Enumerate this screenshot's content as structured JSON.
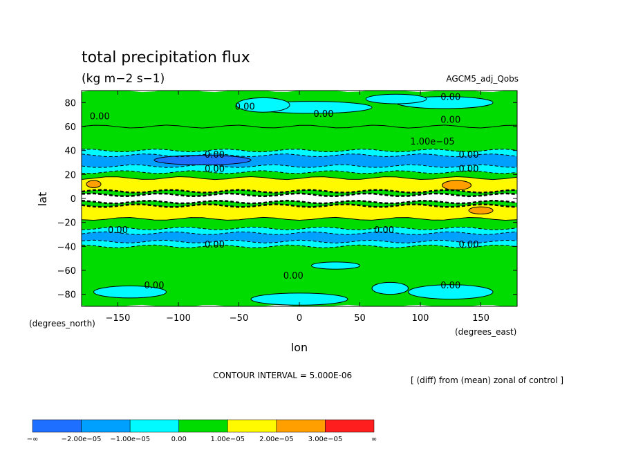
{
  "title": "total precipitation flux",
  "units": "(kg m−2 s−1)",
  "experiment": "AGCM5_adj_Qobs",
  "contour_interval": "CONTOUR INTERVAL = 5.000E-06",
  "description": "[ (diff) from (mean) zonal of control ]",
  "chart_data": {
    "type": "heatmap",
    "title": "total precipitation flux",
    "subtitle": "(kg m−2 s−1)",
    "xlabel": "lon",
    "ylabel": "lat",
    "xunits": "(degrees_east)",
    "yunits": "(degrees_north)",
    "xlim": [
      -180,
      180
    ],
    "ylim": [
      -90,
      90
    ],
    "xticks": [
      "−150",
      "−100",
      "−50",
      "0",
      "50",
      "100",
      "150"
    ],
    "xtick_values": [
      -150,
      -100,
      -50,
      0,
      50,
      100,
      150
    ],
    "yticks": [
      "80",
      "60",
      "40",
      "20",
      "0",
      "−20",
      "−40",
      "−60",
      "−80"
    ],
    "ytick_values": [
      80,
      60,
      40,
      20,
      0,
      -20,
      -40,
      -60,
      -80
    ],
    "contour_interval": 5e-06,
    "colorbar": {
      "labels": [
        "−∞",
        "−2.00e−05",
        "−1.00e−05",
        "0.00",
        "1.00e−05",
        "2.00e−05",
        "3.00e−05",
        "∞"
      ],
      "colors": [
        "#1e6eff",
        "#00a0ff",
        "#00faff",
        "#00dc00",
        "#fffa00",
        "#ffa000",
        "#ff1e1e"
      ]
    },
    "zonal_bands": [
      {
        "lat_min": 60,
        "lat_max": 90,
        "color": "#00dc00"
      },
      {
        "lat_min": 40,
        "lat_max": 60,
        "color": "#00dc00"
      },
      {
        "lat_min": 36,
        "lat_max": 40,
        "color": "#00faff"
      },
      {
        "lat_min": 27,
        "lat_max": 36,
        "color": "#00a0ff"
      },
      {
        "lat_min": 22,
        "lat_max": 27,
        "color": "#00faff"
      },
      {
        "lat_min": 17,
        "lat_max": 22,
        "color": "#00dc00"
      },
      {
        "lat_min": 6,
        "lat_max": 17,
        "color": "#fffa00"
      },
      {
        "lat_min": 3,
        "lat_max": 6,
        "color": "#00dc00"
      },
      {
        "lat_min": -3,
        "lat_max": 3,
        "color": "#ffffff"
      },
      {
        "lat_min": -6,
        "lat_max": -3,
        "color": "#00dc00"
      },
      {
        "lat_min": -17,
        "lat_max": -6,
        "color": "#fffa00"
      },
      {
        "lat_min": -25,
        "lat_max": -17,
        "color": "#00dc00"
      },
      {
        "lat_min": -29,
        "lat_max": -25,
        "color": "#00faff"
      },
      {
        "lat_min": -36,
        "lat_max": -29,
        "color": "#00a0ff"
      },
      {
        "lat_min": -40,
        "lat_max": -36,
        "color": "#00faff"
      },
      {
        "lat_min": -90,
        "lat_max": -40,
        "color": "#00dc00"
      }
    ],
    "patches": [
      {
        "lon": 10,
        "lat": 76,
        "rx": 50,
        "ry": 5,
        "color": "#00faff"
      },
      {
        "lon": -30,
        "lat": 78,
        "rx": 22,
        "ry": 6,
        "color": "#00faff"
      },
      {
        "lon": 120,
        "lat": 80,
        "rx": 40,
        "ry": 5,
        "color": "#00faff"
      },
      {
        "lon": 80,
        "lat": 83,
        "rx": 25,
        "ry": 4,
        "color": "#00faff"
      },
      {
        "lon": 0,
        "lat": -84,
        "rx": 40,
        "ry": 5,
        "color": "#00faff"
      },
      {
        "lon": 75,
        "lat": -75,
        "rx": 15,
        "ry": 5,
        "color": "#00faff"
      },
      {
        "lon": 125,
        "lat": -78,
        "rx": 35,
        "ry": 6,
        "color": "#00faff"
      },
      {
        "lon": -140,
        "lat": -78,
        "rx": 30,
        "ry": 5,
        "color": "#00faff"
      },
      {
        "lon": 30,
        "lat": -56,
        "rx": 20,
        "ry": 3,
        "color": "#00faff"
      },
      {
        "lon": -80,
        "lat": 32,
        "rx": 40,
        "ry": 4,
        "color": "#1e6eff"
      },
      {
        "lon": 130,
        "lat": 11,
        "rx": 12,
        "ry": 4,
        "color": "#ffa000"
      },
      {
        "lon": -170,
        "lat": 12,
        "rx": 6,
        "ry": 3,
        "color": "#ffa000"
      },
      {
        "lon": 150,
        "lat": -10,
        "rx": 10,
        "ry": 3,
        "color": "#ffa000"
      }
    ],
    "contour_labels": [
      {
        "text": "0.00",
        "lon": -165,
        "lat": 69
      },
      {
        "text": "0.00",
        "lon": -45,
        "lat": 77
      },
      {
        "text": "0.00",
        "lon": 20,
        "lat": 71
      },
      {
        "text": "0.00",
        "lon": 125,
        "lat": 85
      },
      {
        "text": "0.00",
        "lon": 125,
        "lat": 66
      },
      {
        "text": "1.00e−05",
        "lon": 110,
        "lat": 48
      },
      {
        "text": "0.00",
        "lon": -70,
        "lat": 37
      },
      {
        "text": "0.00",
        "lon": -70,
        "lat": 25
      },
      {
        "text": "0.00",
        "lon": 140,
        "lat": 37
      },
      {
        "text": "0.00",
        "lon": 140,
        "lat": 25
      },
      {
        "text": "0.00",
        "lon": -150,
        "lat": -26
      },
      {
        "text": "0.00",
        "lon": 70,
        "lat": -26
      },
      {
        "text": "0.00",
        "lon": -70,
        "lat": -38
      },
      {
        "text": "0.00",
        "lon": 140,
        "lat": -38
      },
      {
        "text": "0.00",
        "lon": -5,
        "lat": -64
      },
      {
        "text": "0.00",
        "lon": -120,
        "lat": -72
      },
      {
        "text": "0.00",
        "lon": 125,
        "lat": -72
      }
    ]
  }
}
